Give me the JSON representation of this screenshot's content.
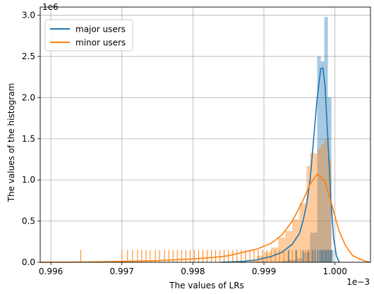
{
  "chart_data": {
    "type": "histogram",
    "title": "",
    "xlabel": "The values of LRs",
    "ylabel": "The values of the histogram",
    "x_offset_text": "1e−3",
    "y_offset_text": "1e6",
    "xlim": [
      0.99585,
      1.0005
    ],
    "ylim": [
      0,
      3.1
    ],
    "xticks": [
      0.996,
      0.997,
      0.998,
      0.999,
      1.0
    ],
    "xtick_labels": [
      "0.996",
      "0.997",
      "0.998",
      "0.999",
      "1.000"
    ],
    "yticks": [
      0.0,
      0.5,
      1.0,
      1.5,
      2.0,
      2.5,
      3.0
    ],
    "ytick_labels": [
      "0.0",
      "0.5",
      "1.0",
      "1.5",
      "2.0",
      "2.5",
      "3.0"
    ],
    "grid": true,
    "legend_position": "top-left",
    "series": [
      {
        "name": "major users",
        "color": "#1f77b4",
        "hist_bins": [
          {
            "x0": 0.99925,
            "x1": 0.99935,
            "value": 0.02
          },
          {
            "x0": 0.99935,
            "x1": 0.99945,
            "value": 0.03
          },
          {
            "x0": 0.99945,
            "x1": 0.99955,
            "value": 0.05
          },
          {
            "x0": 0.99955,
            "x1": 0.99965,
            "value": 0.12
          },
          {
            "x0": 0.99965,
            "x1": 0.99975,
            "value": 0.36
          },
          {
            "x0": 0.99975,
            "x1": 0.9998,
            "value": 2.5
          },
          {
            "x0": 0.9998,
            "x1": 0.99985,
            "value": 2.44
          },
          {
            "x0": 0.99985,
            "x1": 0.9999,
            "value": 2.98
          },
          {
            "x0": 0.9999,
            "x1": 0.99995,
            "value": 2.0
          },
          {
            "x0": 0.99995,
            "x1": 0.99998,
            "value": 0.15
          }
        ],
        "kde": [
          [
            0.9984,
            0.0
          ],
          [
            0.9987,
            0.01
          ],
          [
            0.9989,
            0.03
          ],
          [
            0.9991,
            0.07
          ],
          [
            0.99925,
            0.12
          ],
          [
            0.9994,
            0.22
          ],
          [
            0.9995,
            0.35
          ],
          [
            0.99955,
            0.5
          ],
          [
            0.9996,
            0.7
          ],
          [
            0.99965,
            1.0
          ],
          [
            0.9997,
            1.5
          ],
          [
            0.99975,
            2.0
          ],
          [
            0.9998,
            2.35
          ],
          [
            0.99983,
            2.36
          ],
          [
            0.99986,
            2.15
          ],
          [
            0.9999,
            1.5
          ],
          [
            0.99994,
            0.8
          ],
          [
            0.99998,
            0.3
          ],
          [
            1.00002,
            0.08
          ],
          [
            1.00006,
            0.0
          ]
        ],
        "rug": [
          0.99935,
          0.99945,
          0.99955,
          0.99962,
          0.99968,
          0.99972,
          0.99976,
          0.99979,
          0.99981,
          0.99983,
          0.99985,
          0.99987,
          0.99989,
          0.99991,
          0.99993,
          0.99995
        ]
      },
      {
        "name": "minor users",
        "color": "#ff7f0e",
        "hist_bins": [
          {
            "x0": 0.9988,
            "x1": 0.9989,
            "value": 0.03
          },
          {
            "x0": 0.9989,
            "x1": 0.999,
            "value": 0.08
          },
          {
            "x0": 0.999,
            "x1": 0.9991,
            "value": 0.12
          },
          {
            "x0": 0.9991,
            "x1": 0.9992,
            "value": 0.18
          },
          {
            "x0": 0.9992,
            "x1": 0.9993,
            "value": 0.3
          },
          {
            "x0": 0.9993,
            "x1": 0.9994,
            "value": 0.38
          },
          {
            "x0": 0.9994,
            "x1": 0.9995,
            "value": 0.52
          },
          {
            "x0": 0.9995,
            "x1": 0.9996,
            "value": 0.72
          },
          {
            "x0": 0.9996,
            "x1": 0.99965,
            "value": 1.17
          },
          {
            "x0": 0.99965,
            "x1": 0.9997,
            "value": 1.33
          },
          {
            "x0": 0.9997,
            "x1": 0.99975,
            "value": 1.32
          },
          {
            "x0": 0.99975,
            "x1": 0.9998,
            "value": 1.38
          },
          {
            "x0": 0.9998,
            "x1": 0.99985,
            "value": 1.43
          },
          {
            "x0": 0.99985,
            "x1": 0.9999,
            "value": 1.5
          },
          {
            "x0": 0.9999,
            "x1": 0.99995,
            "value": 1.25
          }
        ],
        "kde": [
          [
            0.99585,
            0.0
          ],
          [
            0.9965,
            0.003
          ],
          [
            0.997,
            0.01
          ],
          [
            0.9975,
            0.02
          ],
          [
            0.998,
            0.04
          ],
          [
            0.9983,
            0.06
          ],
          [
            0.9985,
            0.08
          ],
          [
            0.9987,
            0.12
          ],
          [
            0.9989,
            0.16
          ],
          [
            0.9991,
            0.23
          ],
          [
            0.99925,
            0.33
          ],
          [
            0.9994,
            0.5
          ],
          [
            0.99955,
            0.75
          ],
          [
            0.99965,
            0.95
          ],
          [
            0.99975,
            1.07
          ],
          [
            0.99985,
            1.0
          ],
          [
            0.99995,
            0.72
          ],
          [
            1.00005,
            0.4
          ],
          [
            1.00015,
            0.2
          ],
          [
            1.00025,
            0.08
          ],
          [
            1.0004,
            0.02
          ],
          [
            1.0005,
            0.0
          ]
        ],
        "rug": [
          0.99642,
          0.997,
          0.99708,
          0.99715,
          0.99722,
          0.99728,
          0.99734,
          0.9974,
          0.99747,
          0.99753,
          0.9976,
          0.99766,
          0.99772,
          0.99778,
          0.99784,
          0.9979,
          0.99796,
          0.99802,
          0.99808,
          0.99814,
          0.9982,
          0.99826,
          0.99832,
          0.99838,
          0.99844,
          0.9985,
          0.99856,
          0.99862,
          0.99868,
          0.99874,
          0.9988,
          0.99886,
          0.99892,
          0.99898,
          0.99904,
          0.9991,
          0.99916,
          0.99922,
          0.99928,
          0.99934,
          0.9994,
          0.99946,
          0.99952,
          0.99958,
          0.99964,
          0.9997,
          0.99976,
          0.99982,
          0.99988,
          0.99994
        ]
      }
    ]
  }
}
